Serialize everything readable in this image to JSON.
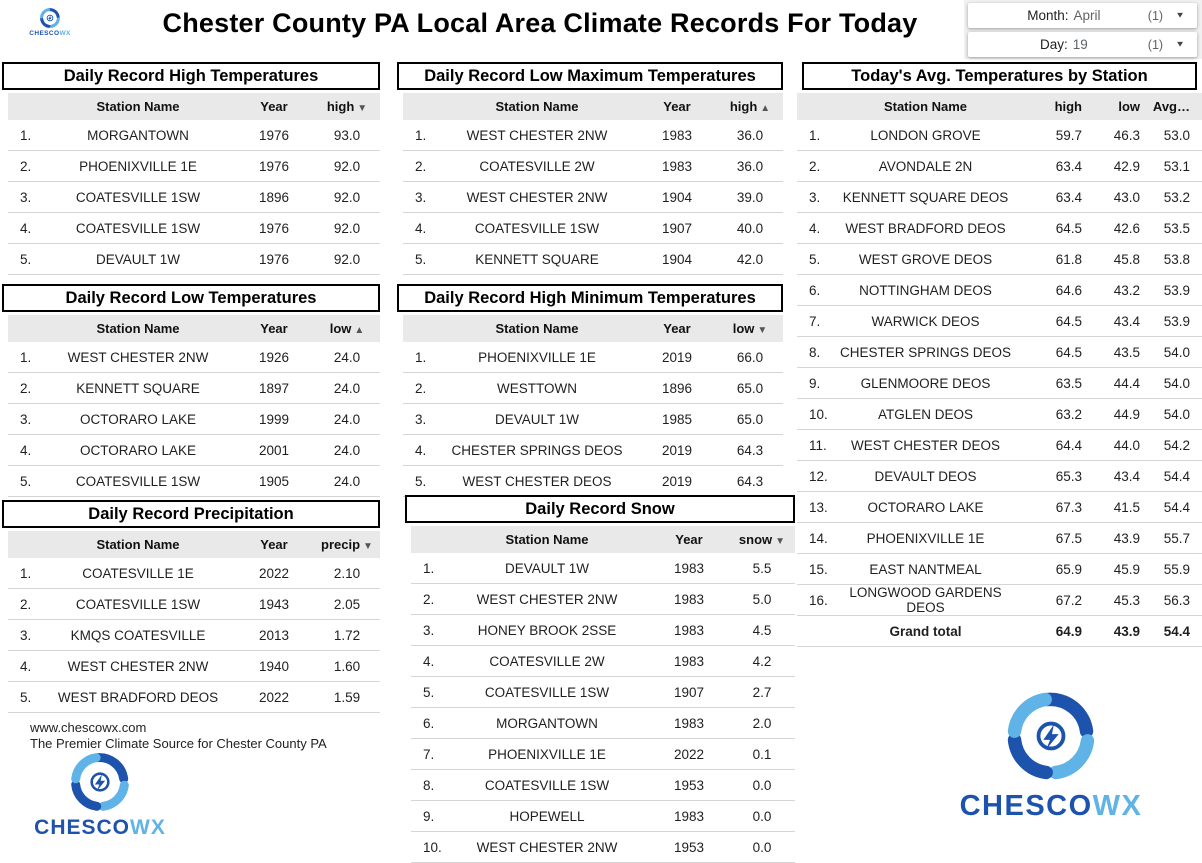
{
  "header": {
    "title": "Chester County PA Local Area Climate Records For Today"
  },
  "brand": {
    "name_dark": "CHESCO",
    "name_light": "WX",
    "dark_blue": "#1d53ad",
    "light_blue": "#5fb3e6"
  },
  "filters": [
    {
      "label": "Month:",
      "value": "April",
      "count": "(1)"
    },
    {
      "label": "Day:",
      "value": "19",
      "count": "(1)"
    }
  ],
  "tables": {
    "record_high": {
      "title": "Daily Record High Temperatures",
      "columns": [
        "Station Name",
        "Year",
        "high"
      ],
      "sort_col": "high",
      "sort_dir": "desc",
      "rows": [
        [
          "1.",
          "MORGANTOWN",
          "1976",
          "93.0"
        ],
        [
          "2.",
          "PHOENIXVILLE 1E",
          "1976",
          "92.0"
        ],
        [
          "3.",
          "COATESVILLE 1SW",
          "1896",
          "92.0"
        ],
        [
          "4.",
          "COATESVILLE 1SW",
          "1976",
          "92.0"
        ],
        [
          "5.",
          "DEVAULT 1W",
          "1976",
          "92.0"
        ]
      ]
    },
    "record_low_max": {
      "title": "Daily Record Low Maximum Temperatures",
      "columns": [
        "Station Name",
        "Year",
        "high"
      ],
      "sort_col": "high",
      "sort_dir": "asc",
      "rows": [
        [
          "1.",
          "WEST CHESTER 2NW",
          "1983",
          "36.0"
        ],
        [
          "2.",
          "COATESVILLE 2W",
          "1983",
          "36.0"
        ],
        [
          "3.",
          "WEST CHESTER 2NW",
          "1904",
          "39.0"
        ],
        [
          "4.",
          "COATESVILLE 1SW",
          "1907",
          "40.0"
        ],
        [
          "5.",
          "KENNETT SQUARE",
          "1904",
          "42.0"
        ]
      ]
    },
    "record_low": {
      "title": "Daily Record Low Temperatures",
      "columns": [
        "Station Name",
        "Year",
        "low"
      ],
      "sort_col": "low",
      "sort_dir": "asc",
      "rows": [
        [
          "1.",
          "WEST CHESTER 2NW",
          "1926",
          "24.0"
        ],
        [
          "2.",
          "KENNETT SQUARE",
          "1897",
          "24.0"
        ],
        [
          "3.",
          "OCTORARO LAKE",
          "1999",
          "24.0"
        ],
        [
          "4.",
          "OCTORARO LAKE",
          "2001",
          "24.0"
        ],
        [
          "5.",
          "COATESVILLE 1SW",
          "1905",
          "24.0"
        ]
      ]
    },
    "record_high_min": {
      "title": "Daily Record High Minimum Temperatures",
      "columns": [
        "Station Name",
        "Year",
        "low"
      ],
      "sort_col": "low",
      "sort_dir": "desc",
      "rows": [
        [
          "1.",
          "PHOENIXVILLE 1E",
          "2019",
          "66.0"
        ],
        [
          "2.",
          "WESTTOWN",
          "1896",
          "65.0"
        ],
        [
          "3.",
          "DEVAULT 1W",
          "1985",
          "65.0"
        ],
        [
          "4.",
          "CHESTER SPRINGS DEOS",
          "2019",
          "64.3"
        ],
        [
          "5.",
          "WEST CHESTER DEOS",
          "2019",
          "64.3"
        ]
      ]
    },
    "record_precip": {
      "title": "Daily Record Precipitation",
      "columns": [
        "Station Name",
        "Year",
        "precip"
      ],
      "sort_col": "precip",
      "sort_dir": "desc",
      "rows": [
        [
          "1.",
          "COATESVILLE 1E",
          "2022",
          "2.10"
        ],
        [
          "2.",
          "COATESVILLE 1SW",
          "1943",
          "2.05"
        ],
        [
          "3.",
          "KMQS COATESVILLE",
          "2013",
          "1.72"
        ],
        [
          "4.",
          "WEST CHESTER 2NW",
          "1940",
          "1.60"
        ],
        [
          "5.",
          "WEST BRADFORD DEOS",
          "2022",
          "1.59"
        ]
      ]
    },
    "record_snow": {
      "title": "Daily Record Snow",
      "columns": [
        "Station Name",
        "Year",
        "snow"
      ],
      "sort_col": "snow",
      "sort_dir": "desc",
      "rows": [
        [
          "1.",
          "DEVAULT 1W",
          "1983",
          "5.5"
        ],
        [
          "2.",
          "WEST CHESTER 2NW",
          "1983",
          "5.0"
        ],
        [
          "3.",
          "HONEY BROOK 2SSE",
          "1983",
          "4.5"
        ],
        [
          "4.",
          "COATESVILLE 2W",
          "1983",
          "4.2"
        ],
        [
          "5.",
          "COATESVILLE 1SW",
          "1907",
          "2.7"
        ],
        [
          "6.",
          "MORGANTOWN",
          "1983",
          "2.0"
        ],
        [
          "7.",
          "PHOENIXVILLE 1E",
          "2022",
          "0.1"
        ],
        [
          "8.",
          "COATESVILLE 1SW",
          "1953",
          "0.0"
        ],
        [
          "9.",
          "HOPEWELL",
          "1983",
          "0.0"
        ],
        [
          "10.",
          "WEST CHESTER 2NW",
          "1953",
          "0.0"
        ]
      ]
    },
    "today_avg": {
      "title": "Today's Avg. Temperatures by Station",
      "columns": [
        "Station Name",
        "high",
        "low",
        "Avg…"
      ],
      "rows": [
        [
          "1.",
          "LONDON GROVE",
          "59.7",
          "46.3",
          "53.0"
        ],
        [
          "2.",
          "AVONDALE 2N",
          "63.4",
          "42.9",
          "53.1"
        ],
        [
          "3.",
          "KENNETT SQUARE DEOS",
          "63.4",
          "43.0",
          "53.2"
        ],
        [
          "4.",
          "WEST BRADFORD DEOS",
          "64.5",
          "42.6",
          "53.5"
        ],
        [
          "5.",
          "WEST GROVE DEOS",
          "61.8",
          "45.8",
          "53.8"
        ],
        [
          "6.",
          "NOTTINGHAM DEOS",
          "64.6",
          "43.2",
          "53.9"
        ],
        [
          "7.",
          "WARWICK DEOS",
          "64.5",
          "43.4",
          "53.9"
        ],
        [
          "8.",
          "CHESTER SPRINGS DEOS",
          "64.5",
          "43.5",
          "54.0"
        ],
        [
          "9.",
          "GLENMOORE DEOS",
          "63.5",
          "44.4",
          "54.0"
        ],
        [
          "10.",
          "ATGLEN DEOS",
          "63.2",
          "44.9",
          "54.0"
        ],
        [
          "11.",
          "WEST CHESTER DEOS",
          "64.4",
          "44.0",
          "54.2"
        ],
        [
          "12.",
          "DEVAULT DEOS",
          "65.3",
          "43.4",
          "54.4"
        ],
        [
          "13.",
          "OCTORARO LAKE",
          "67.3",
          "41.5",
          "54.4"
        ],
        [
          "14.",
          "PHOENIXVILLE 1E",
          "67.5",
          "43.9",
          "55.7"
        ],
        [
          "15.",
          "EAST NANTMEAL",
          "65.9",
          "45.9",
          "55.9"
        ],
        [
          "16.",
          "LONGWOOD GARDENS DEOS",
          "67.2",
          "45.3",
          "56.3"
        ]
      ],
      "total": [
        "Grand total",
        "64.9",
        "43.9",
        "54.4"
      ]
    }
  },
  "footer": {
    "url": "www.chescowx.com",
    "tagline": "The Premier Climate Source for Chester County PA"
  }
}
